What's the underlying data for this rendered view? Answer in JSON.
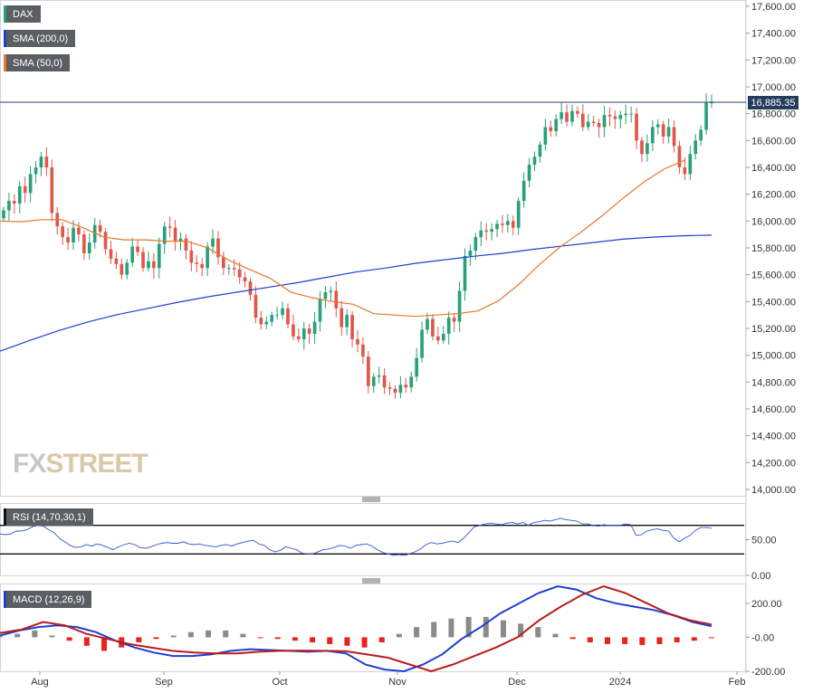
{
  "legend": {
    "dax": "DAX",
    "sma200": "SMA (200,0)",
    "sma50": "SMA (50,0)",
    "rsi": "RSI (14,70,30,1)",
    "macd": "MACD (12,26,9)"
  },
  "current_price_label": "16,885.35",
  "watermark": {
    "fx": "FX",
    "street": "STREET"
  },
  "colors": {
    "up": "#27a17a",
    "down": "#e0574a",
    "sma200": "#1f3fd0",
    "sma50": "#e8782a",
    "rsi_line": "#3552d6",
    "macd_line": "#1f3fd0",
    "signal_line": "#b81c1c",
    "hist_pos": "#8a8a8a",
    "hist_neg": "#e8231e",
    "price_line": "#263c5c"
  },
  "chart_data": [
    {
      "type": "candlestick",
      "title": "DAX",
      "ylim": [
        14000,
        17600
      ],
      "y_ticks": [
        "17,600.00",
        "17,400.00",
        "17,200.00",
        "17,000.00",
        "16,800.00",
        "16,600.00",
        "16,400.00",
        "16,200.00",
        "16,000.00",
        "15,800.00",
        "15,600.00",
        "15,400.00",
        "15,200.00",
        "15,000.00",
        "14,800.00",
        "14,600.00",
        "14,400.00",
        "14,200.00",
        "14,000.00"
      ],
      "x_ticks": [
        "Aug",
        "Sep",
        "Oct",
        "Nov",
        "Dec",
        "2024",
        "Feb"
      ],
      "current_price": 16885.35,
      "close": [
        16080,
        16150,
        16130,
        16260,
        16210,
        16350,
        16400,
        16480,
        16400,
        16060,
        15960,
        15880,
        15840,
        15950,
        15900,
        15760,
        15840,
        15970,
        15920,
        15790,
        15720,
        15680,
        15600,
        15690,
        15810,
        15770,
        15650,
        15700,
        15650,
        15830,
        15960,
        15950,
        15850,
        15870,
        15780,
        15690,
        15680,
        15650,
        15810,
        15870,
        15730,
        15650,
        15650,
        15640,
        15580,
        15550,
        15450,
        15280,
        15230,
        15250,
        15300,
        15300,
        15350,
        15230,
        15140,
        15120,
        15200,
        15160,
        15250,
        15420,
        15470,
        15480,
        15350,
        15210,
        15300,
        15120,
        15080,
        14990,
        14770,
        14840,
        14850,
        14760,
        14750,
        14720,
        14780,
        14760,
        14840,
        14980,
        15190,
        15270,
        15140,
        15110,
        15160,
        15280,
        15250,
        15480,
        15740,
        15780,
        15880,
        15930,
        15920,
        15940,
        15980,
        15970,
        16000,
        15950,
        16150,
        16300,
        16420,
        16480,
        16570,
        16700,
        16670,
        16760,
        16810,
        16740,
        16820,
        16800,
        16700,
        16740,
        16730,
        16700,
        16790,
        16780,
        16760,
        16790,
        16800,
        16800,
        16600,
        16500,
        16580,
        16700,
        16720,
        16630,
        16700,
        16560,
        16400,
        16350,
        16500,
        16600,
        16680,
        16880,
        16885
      ],
      "series": [
        {
          "name": "SMA (200,0)",
          "values": [
            15030,
            15110,
            15185,
            15250,
            15305,
            15350,
            15395,
            15435,
            15470,
            15505,
            15540,
            15580,
            15620,
            15650,
            15685,
            15712,
            15738,
            15760,
            15790,
            15815,
            15840,
            15865,
            15880,
            15890,
            15895
          ]
        },
        {
          "name": "SMA (50,0)",
          "values": [
            16000,
            15995,
            16010,
            16010,
            15950,
            15880,
            15860,
            15860,
            15850,
            15850,
            15800,
            15710,
            15640,
            15575,
            15470,
            15430,
            15400,
            15380,
            15310,
            15300,
            15290,
            15300,
            15310,
            15330,
            15405,
            15530,
            15680,
            15810,
            15920,
            16040,
            16170,
            16290,
            16390,
            16455
          ]
        }
      ]
    },
    {
      "type": "line",
      "title": "RSI (14,70,30,1)",
      "ylim": [
        0,
        100
      ],
      "y_ticks": [
        "50.00",
        "0.00"
      ],
      "levels": [
        70,
        30
      ],
      "values": [
        58,
        57,
        58,
        62,
        62,
        64,
        68,
        70,
        69,
        64,
        60,
        52,
        47,
        42,
        39,
        40,
        43,
        41,
        44,
        42,
        39,
        36,
        40,
        43,
        45,
        43,
        39,
        38,
        40,
        43,
        45,
        46,
        45,
        45,
        47,
        44,
        43,
        44,
        42,
        41,
        40,
        42,
        43,
        41,
        44,
        46,
        48,
        49,
        44,
        42,
        36,
        33,
        35,
        40,
        38,
        36,
        31,
        30,
        30,
        33,
        36,
        37,
        39,
        42,
        41,
        38,
        42,
        43,
        44,
        41,
        36,
        32,
        30,
        28,
        29,
        28,
        30,
        33,
        37,
        43,
        46,
        44,
        45,
        47,
        48,
        46,
        52,
        60,
        68,
        70,
        72,
        73,
        72,
        71,
        73,
        74,
        72,
        74,
        70,
        74,
        75,
        77,
        76,
        78,
        80,
        78,
        77,
        76,
        72,
        72,
        70,
        69,
        71,
        70,
        70,
        70,
        72,
        71,
        56,
        57,
        62,
        64,
        65,
        63,
        62,
        52,
        47,
        52,
        56,
        63,
        67,
        67,
        66
      ]
    },
    {
      "type": "bar",
      "title": "MACD (12,26,9)",
      "ylim": [
        -200,
        300
      ],
      "y_ticks": [
        "200.00",
        "-0.00",
        "-200.00"
      ],
      "series": [
        {
          "name": "MACD",
          "values": [
            10,
            40,
            60,
            70,
            60,
            30,
            -20,
            -60,
            -90,
            -110,
            -110,
            -100,
            -80,
            -70,
            -75,
            -80,
            -85,
            -80,
            -95,
            -160,
            -190,
            -200,
            -160,
            -100,
            -10,
            60,
            140,
            200,
            260,
            300,
            280,
            230,
            200,
            180,
            160,
            130,
            90,
            65
          ]
        },
        {
          "name": "Signal",
          "values": [
            25,
            45,
            90,
            70,
            20,
            -10,
            -40,
            -60,
            -80,
            -90,
            -95,
            -95,
            -85,
            -80,
            -78,
            -80,
            -82,
            -100,
            -120,
            -160,
            -200,
            -160,
            -110,
            -60,
            0,
            100,
            180,
            250,
            300,
            260,
            200,
            140,
            100,
            75
          ]
        }
      ],
      "histogram": [
        5,
        20,
        40,
        10,
        -20,
        -50,
        -80,
        -60,
        -30,
        -10,
        10,
        30,
        40,
        40,
        20,
        -5,
        -10,
        -20,
        -30,
        -40,
        -50,
        -60,
        -30,
        20,
        60,
        90,
        110,
        120,
        120,
        100,
        80,
        60,
        20,
        -10,
        -30,
        -40,
        -40,
        -45,
        -40,
        -30,
        -20,
        -5
      ]
    }
  ]
}
